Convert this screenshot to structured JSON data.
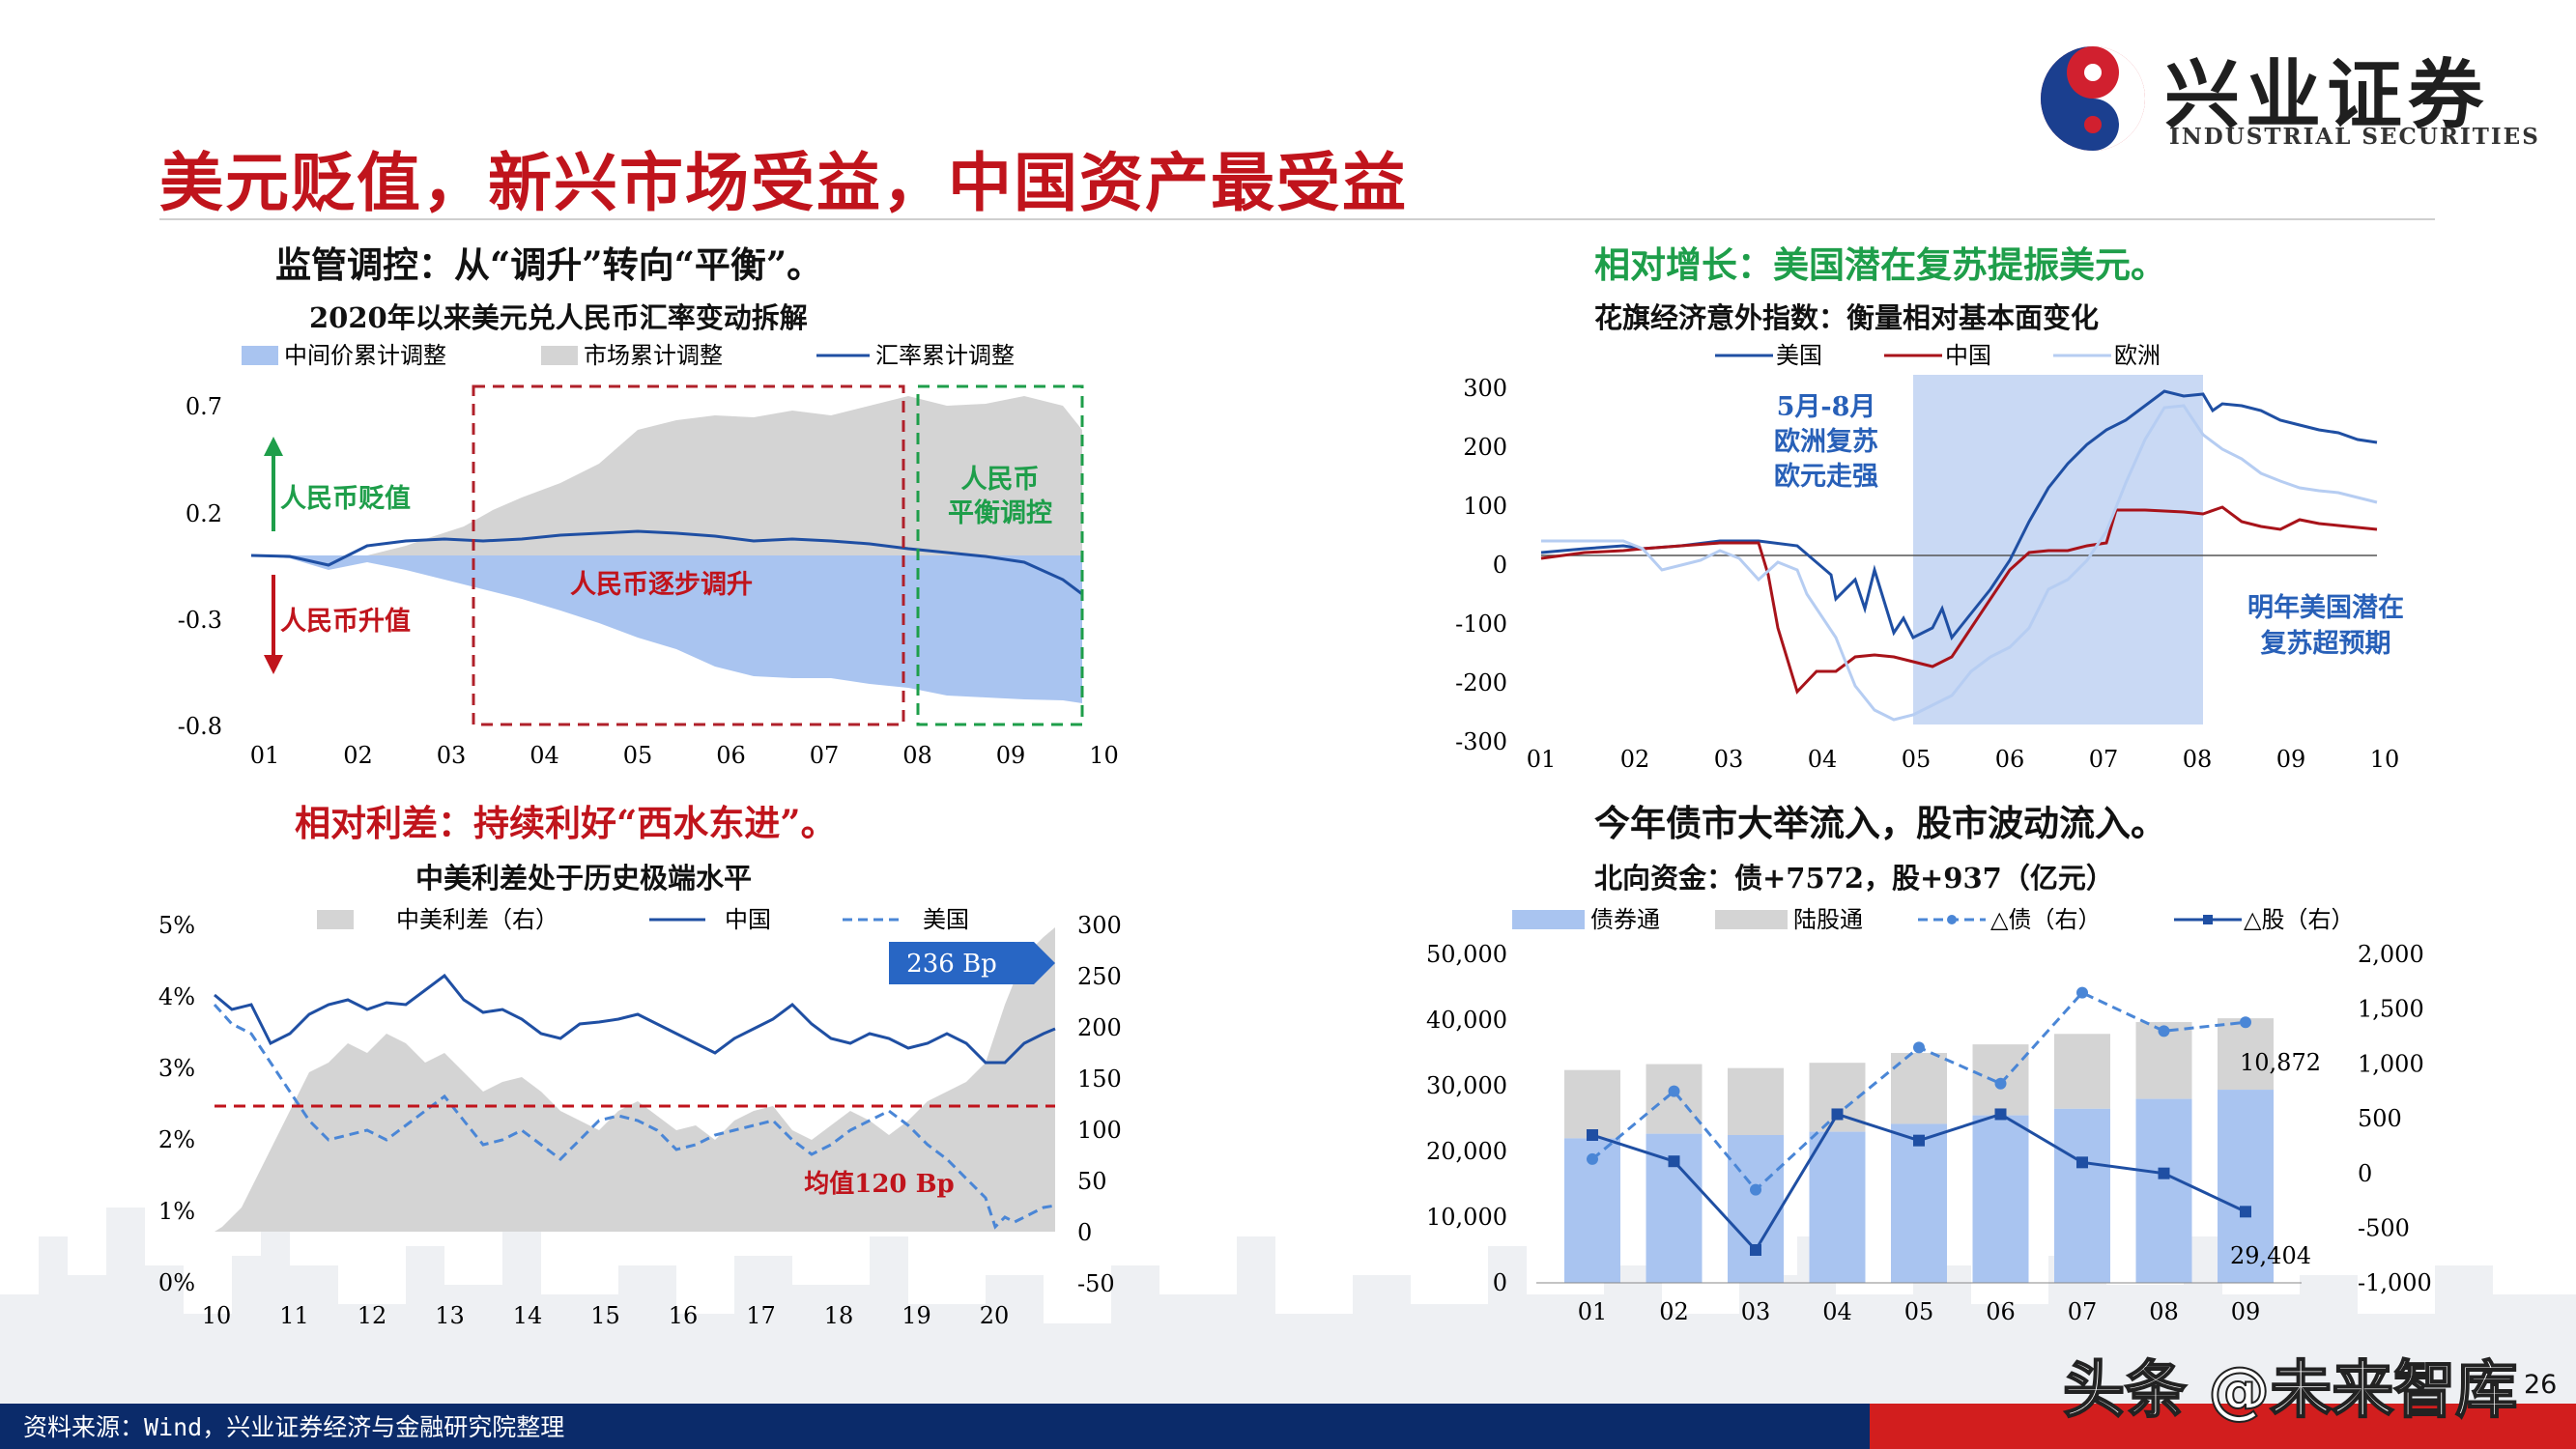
{
  "slide": {
    "title": "美元贬值，新兴市场受益，中国资产最受益",
    "page_number": "26",
    "source": "资料来源：Wind，兴业证券经济与金融研究院整理",
    "watermark": "头条 @未来智库",
    "logo": {
      "cn": "兴业证券",
      "en": "INDUSTRIAL SECURITIES"
    },
    "colors": {
      "title": "#c0141c",
      "navy": "#0b2b6a",
      "green": "#1e9e4a",
      "blue": "#1f4fa3"
    }
  },
  "panel_tl": {
    "heading": "监管调控：从“调升”转向“平衡”。",
    "subtitle": "2020年以来美元兑人民币汇率变动拆解",
    "legend": [
      "中间价累计调整",
      "市场累计调整",
      "汇率累计调整"
    ],
    "annotations": {
      "depreciation": "人民币贬值",
      "appreciation": "人民币升值",
      "steady_rise": "人民币逐步调升",
      "balance_1": "人民币",
      "balance_2": "平衡调控"
    },
    "y_ticks": [
      "0.7",
      "0.2",
      "-0.3",
      "-0.8"
    ],
    "x_ticks": [
      "01",
      "02",
      "03",
      "04",
      "05",
      "06",
      "07",
      "08",
      "09",
      "10"
    ]
  },
  "panel_tr": {
    "heading": "相对增长：美国潜在复苏提振美元。",
    "subtitle": "花旗经济意外指数：衡量相对基本面变化",
    "legend": [
      "美国",
      "中国",
      "欧洲"
    ],
    "annotations": {
      "eu_1": "5月-8月",
      "eu_2": "欧洲复苏",
      "eu_3": "欧元走强",
      "us_1": "明年美国潜在",
      "us_2": "复苏超预期"
    },
    "y_ticks": [
      "300",
      "200",
      "100",
      "0",
      "-100",
      "-200",
      "-300"
    ],
    "x_ticks": [
      "01",
      "02",
      "03",
      "04",
      "05",
      "06",
      "07",
      "08",
      "09",
      "10"
    ]
  },
  "panel_bl": {
    "heading": "相对利差：持续利好“西水东进”。",
    "subtitle": "中美利差处于历史极端水平",
    "legend": [
      "中美利差（右）",
      "中国",
      "美国"
    ],
    "annotations": {
      "latest": "236 Bp",
      "mean": "均值120 Bp"
    },
    "y_left": [
      "5%",
      "4%",
      "3%",
      "2%",
      "1%",
      "0%"
    ],
    "y_right": [
      "300",
      "250",
      "200",
      "150",
      "100",
      "50",
      "0",
      "-50"
    ],
    "x_ticks": [
      "10",
      "11",
      "12",
      "13",
      "14",
      "15",
      "16",
      "17",
      "18",
      "19",
      "20"
    ]
  },
  "panel_br": {
    "heading": "今年债市大举流入，股市波动流入。",
    "subtitle": "北向资金：债+7572，股+937（亿元）",
    "legend": [
      "债券通",
      "陆股通",
      "△债（右）",
      "△股（右）"
    ],
    "y_left": [
      "50,000",
      "40,000",
      "30,000",
      "20,000",
      "10,000",
      "0"
    ],
    "y_right": [
      "2,000",
      "1,500",
      "1,000",
      "500",
      "0",
      "-500",
      "-1,000"
    ],
    "data_labels": {
      "stock_last": "10,872",
      "bond_last": "29,404"
    }
  },
  "chart_data": [
    {
      "type": "area",
      "title": "2020年以来美元兑人民币汇率变动拆解",
      "categories": [
        "01",
        "02",
        "03",
        "04",
        "05",
        "06",
        "07",
        "08",
        "09",
        "10"
      ],
      "ylim": [
        -0.8,
        0.7
      ],
      "series": [
        {
          "name": "中间价累计调整",
          "values": [
            0.0,
            -0.05,
            -0.1,
            -0.2,
            -0.4,
            -0.55,
            -0.62,
            -0.68,
            -0.7,
            -0.73
          ]
        },
        {
          "name": "市场累计调整",
          "values": [
            0.0,
            0.02,
            0.1,
            0.3,
            0.6,
            0.65,
            0.72,
            0.73,
            0.55,
            0.4
          ]
        },
        {
          "name": "汇率累计调整",
          "values": [
            0.0,
            0.05,
            0.08,
            0.15,
            0.15,
            0.13,
            0.1,
            0.02,
            -0.1,
            -0.3
          ]
        }
      ]
    },
    {
      "type": "line",
      "title": "花旗经济意外指数：衡量相对基本面变化",
      "categories": [
        "01",
        "02",
        "03",
        "04",
        "05",
        "06",
        "07",
        "08",
        "09",
        "10"
      ],
      "ylim": [
        -300,
        300
      ],
      "series": [
        {
          "name": "美国",
          "values": [
            20,
            30,
            20,
            -70,
            -130,
            20,
            160,
            240,
            220,
            150
          ]
        },
        {
          "name": "中国",
          "values": [
            20,
            40,
            20,
            -230,
            -180,
            -20,
            60,
            70,
            60,
            40
          ]
        },
        {
          "name": "欧洲",
          "values": [
            35,
            30,
            -10,
            -150,
            -280,
            -240,
            30,
            200,
            130,
            70
          ]
        }
      ]
    },
    {
      "type": "line",
      "title": "中美利差处于历史极端水平",
      "categories": [
        "10",
        "11",
        "12",
        "13",
        "14",
        "15",
        "16",
        "17",
        "18",
        "19",
        "20"
      ],
      "series": [
        {
          "name": "中国",
          "values": [
            3.7,
            3.6,
            3.5,
            3.9,
            4.3,
            3.6,
            2.9,
            3.6,
            3.5,
            3.2,
            3.1
          ]
        },
        {
          "name": "美国",
          "values": [
            3.2,
            2.8,
            1.9,
            2.1,
            2.5,
            2.2,
            1.8,
            2.4,
            2.9,
            2.2,
            0.8
          ]
        },
        {
          "name": "中美利差（右）",
          "values": [
            50,
            80,
            160,
            180,
            180,
            140,
            110,
            120,
            60,
            100,
            236
          ]
        }
      ]
    },
    {
      "type": "bar",
      "title": "北向资金：债+7572，股+937（亿元）",
      "categories": [
        "01",
        "02",
        "03",
        "04",
        "05",
        "06",
        "07",
        "08",
        "09"
      ],
      "ylim": [
        0,
        50000
      ],
      "series": [
        {
          "name": "债券通",
          "values": [
            22000,
            22700,
            22500,
            23000,
            24200,
            25500,
            26500,
            28000,
            29404
          ]
        },
        {
          "name": "陆股通",
          "values": [
            10400,
            10600,
            10200,
            10500,
            10800,
            10800,
            11400,
            11700,
            10872
          ]
        },
        {
          "name": "△债（右）",
          "values": [
            130,
            750,
            -150,
            540,
            1150,
            820,
            1650,
            1300,
            1380
          ]
        },
        {
          "name": "△股（右）",
          "values": [
            350,
            110,
            -700,
            540,
            300,
            540,
            100,
            0,
            -350
          ]
        }
      ]
    }
  ]
}
